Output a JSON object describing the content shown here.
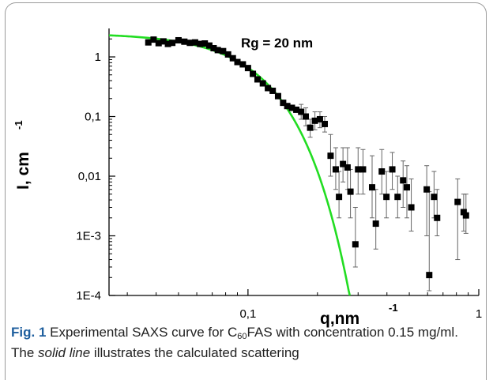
{
  "chart_data": {
    "type": "scatter",
    "xscale": "log",
    "yscale": "log",
    "xlim": [
      0.025,
      1
    ],
    "ylim": [
      0.0001,
      3
    ],
    "xticks": [
      {
        "value": 0.1,
        "label": "0,1"
      },
      {
        "value": 1,
        "label": "1"
      }
    ],
    "yticks": [
      {
        "value": 0.0001,
        "label": "1E-4"
      },
      {
        "value": 0.001,
        "label": "1E-3"
      },
      {
        "value": 0.01,
        "label": "0,01"
      },
      {
        "value": 0.1,
        "label": "0,1"
      },
      {
        "value": 1,
        "label": "1"
      }
    ],
    "xlabel": {
      "base": "q,nm",
      "sup": "-1"
    },
    "ylabel": {
      "base": "I, cm",
      "sup": "-1"
    },
    "annotation": "Rg = 20 nm",
    "grid": false,
    "series": [
      {
        "kind": "scatter",
        "marker": "square",
        "color": "#000000",
        "points": [
          {
            "x": 0.037,
            "y": 1.75
          },
          {
            "x": 0.039,
            "y": 1.95
          },
          {
            "x": 0.041,
            "y": 1.7
          },
          {
            "x": 0.043,
            "y": 1.82
          },
          {
            "x": 0.045,
            "y": 1.65
          },
          {
            "x": 0.047,
            "y": 1.72
          },
          {
            "x": 0.05,
            "y": 1.9
          },
          {
            "x": 0.053,
            "y": 1.8
          },
          {
            "x": 0.056,
            "y": 1.72
          },
          {
            "x": 0.059,
            "y": 1.75
          },
          {
            "x": 0.062,
            "y": 1.65
          },
          {
            "x": 0.065,
            "y": 1.68
          },
          {
            "x": 0.068,
            "y": 1.55
          },
          {
            "x": 0.071,
            "y": 1.4
          },
          {
            "x": 0.074,
            "y": 1.3
          },
          {
            "x": 0.078,
            "y": 1.25
          },
          {
            "x": 0.082,
            "y": 1.1
          },
          {
            "x": 0.086,
            "y": 0.95
          },
          {
            "x": 0.09,
            "y": 0.82
          },
          {
            "x": 0.095,
            "y": 0.75
          },
          {
            "x": 0.1,
            "y": 0.65
          },
          {
            "x": 0.105,
            "y": 0.52
          },
          {
            "x": 0.11,
            "y": 0.42
          },
          {
            "x": 0.116,
            "y": 0.36
          },
          {
            "x": 0.122,
            "y": 0.3
          },
          {
            "x": 0.128,
            "y": 0.27
          },
          {
            "x": 0.135,
            "y": 0.22
          },
          {
            "x": 0.142,
            "y": 0.17
          },
          {
            "x": 0.148,
            "y": 0.15
          },
          {
            "x": 0.155,
            "y": 0.14
          },
          {
            "x": 0.162,
            "y": 0.13
          },
          {
            "x": 0.17,
            "y": 0.12,
            "ylo": 0.09,
            "yhi": 0.16
          },
          {
            "x": 0.178,
            "y": 0.1,
            "ylo": 0.07,
            "yhi": 0.14
          },
          {
            "x": 0.186,
            "y": 0.065,
            "ylo": 0.045,
            "yhi": 0.09
          },
          {
            "x": 0.195,
            "y": 0.085,
            "ylo": 0.06,
            "yhi": 0.12
          },
          {
            "x": 0.205,
            "y": 0.09,
            "ylo": 0.065,
            "yhi": 0.12
          },
          {
            "x": 0.215,
            "y": 0.075,
            "ylo": 0.055,
            "yhi": 0.1
          },
          {
            "x": 0.228,
            "y": 0.022,
            "ylo": 0.01,
            "yhi": 0.05
          },
          {
            "x": 0.24,
            "y": 0.013,
            "ylo": 0.006,
            "yhi": 0.03
          },
          {
            "x": 0.248,
            "y": 0.0045,
            "ylo": 0.002,
            "yhi": 0.012
          },
          {
            "x": 0.258,
            "y": 0.016,
            "ylo": 0.008,
            "yhi": 0.03
          },
          {
            "x": 0.27,
            "y": 0.014,
            "ylo": 0.006,
            "yhi": 0.03
          },
          {
            "x": 0.278,
            "y": 0.0055,
            "ylo": 0.002,
            "yhi": 0.013
          },
          {
            "x": 0.292,
            "y": 0.00072,
            "ylo": 0.0003,
            "yhi": 0.003
          },
          {
            "x": 0.3,
            "y": 0.013,
            "ylo": 0.005,
            "yhi": 0.03
          },
          {
            "x": 0.315,
            "y": 0.013,
            "ylo": 0.005,
            "yhi": 0.028
          },
          {
            "x": 0.345,
            "y": 0.0065,
            "ylo": 0.002,
            "yhi": 0.022
          },
          {
            "x": 0.358,
            "y": 0.0016,
            "ylo": 0.0006,
            "yhi": 0.006
          },
          {
            "x": 0.38,
            "y": 0.012,
            "ylo": 0.005,
            "yhi": 0.028
          },
          {
            "x": 0.398,
            "y": 0.0045,
            "ylo": 0.002,
            "yhi": 0.012
          },
          {
            "x": 0.422,
            "y": 0.013,
            "ylo": 0.006,
            "yhi": 0.025
          },
          {
            "x": 0.445,
            "y": 0.0045,
            "ylo": 0.002,
            "yhi": 0.01
          },
          {
            "x": 0.47,
            "y": 0.0085,
            "ylo": 0.003,
            "yhi": 0.018
          },
          {
            "x": 0.488,
            "y": 0.0065,
            "ylo": 0.002,
            "yhi": 0.015
          },
          {
            "x": 0.51,
            "y": 0.003,
            "ylo": 0.0012,
            "yhi": 0.009
          },
          {
            "x": 0.595,
            "y": 0.006,
            "ylo": 0.001,
            "yhi": 0.015
          },
          {
            "x": 0.61,
            "y": 0.00022,
            "ylo": 0.00012,
            "yhi": 0.0055
          },
          {
            "x": 0.64,
            "y": 0.0045,
            "ylo": 0.002,
            "yhi": 0.012
          },
          {
            "x": 0.66,
            "y": 0.002,
            "ylo": 0.001,
            "yhi": 0.006
          },
          {
            "x": 0.81,
            "y": 0.0037,
            "ylo": 0.0004,
            "yhi": 0.009
          },
          {
            "x": 0.86,
            "y": 0.0025,
            "ylo": 0.0012,
            "yhi": 0.005
          },
          {
            "x": 0.88,
            "y": 0.0022,
            "ylo": 0.0011,
            "yhi": 0.005
          }
        ]
      },
      {
        "kind": "line",
        "color": "#22dd22",
        "guinier_rg_nm": 20,
        "i0": 2.5,
        "xrange": [
          0.025,
          0.29
        ]
      }
    ]
  },
  "caption": {
    "lead": "Fig. 1",
    "t1": " Experimental SAXS curve for C",
    "sub": "60",
    "t2": "FAS with concentration 0.15 mg/ml. The ",
    "italic": "solid line",
    "t3": " illustrates the calculated scattering"
  }
}
